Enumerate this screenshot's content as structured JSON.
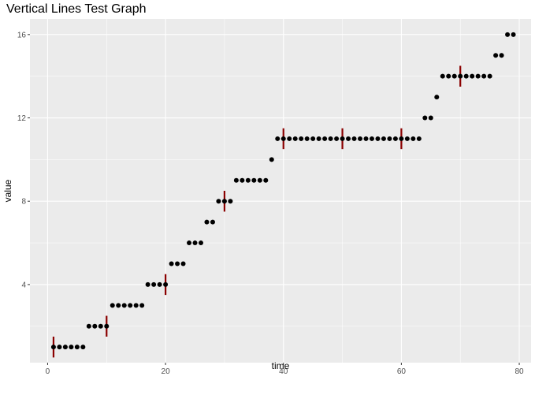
{
  "chart_data": {
    "type": "scatter",
    "title": "Vertical Lines Test Graph",
    "xlabel": "time",
    "ylabel": "value",
    "xlim": [
      -3,
      82
    ],
    "ylim": [
      0.25,
      16.75
    ],
    "x_ticks": [
      0,
      20,
      40,
      60,
      80
    ],
    "x_minor_ticks": [
      10,
      30,
      50,
      70
    ],
    "y_ticks": [
      4,
      8,
      12,
      16
    ],
    "y_minor_ticks": [
      2,
      6,
      10,
      14
    ],
    "grid": true,
    "colors": {
      "panel_background": "#ebebeb",
      "grid": "#ffffff",
      "points": "#000000",
      "vertical_lines": "#8b0000",
      "axis_text": "#4d4d4d"
    },
    "points": {
      "x": [
        1,
        2,
        3,
        4,
        5,
        6,
        7,
        8,
        9,
        10,
        11,
        12,
        13,
        14,
        15,
        16,
        17,
        18,
        19,
        20,
        21,
        22,
        23,
        24,
        25,
        26,
        27,
        28,
        29,
        30,
        31,
        32,
        33,
        34,
        35,
        36,
        37,
        38,
        39,
        40,
        41,
        42,
        43,
        44,
        45,
        46,
        47,
        48,
        49,
        50,
        51,
        52,
        53,
        54,
        55,
        56,
        57,
        58,
        59,
        60,
        61,
        62,
        63,
        64,
        65,
        66,
        67,
        68,
        69,
        70,
        71,
        72,
        73,
        74,
        75,
        76,
        77,
        78,
        79
      ],
      "y": [
        1,
        1,
        1,
        1,
        1,
        1,
        2,
        2,
        2,
        2,
        3,
        3,
        3,
        3,
        3,
        3,
        4,
        4,
        4,
        4,
        5,
        5,
        5,
        6,
        6,
        6,
        7,
        7,
        8,
        8,
        8,
        9,
        9,
        9,
        9,
        9,
        9,
        10,
        11,
        11,
        11,
        11,
        11,
        11,
        11,
        11,
        11,
        11,
        11,
        11,
        11,
        11,
        11,
        11,
        11,
        11,
        11,
        11,
        11,
        11,
        11,
        11,
        11,
        12,
        12,
        13,
        14,
        14,
        14,
        14,
        14,
        14,
        14,
        14,
        14,
        15,
        15,
        16,
        16
      ]
    },
    "vertical_lines": {
      "x": [
        1,
        10,
        20,
        30,
        40,
        50,
        60,
        70
      ],
      "y_center": [
        1,
        2,
        4,
        8,
        11,
        11,
        11,
        14
      ],
      "half_length": 0.5
    }
  }
}
